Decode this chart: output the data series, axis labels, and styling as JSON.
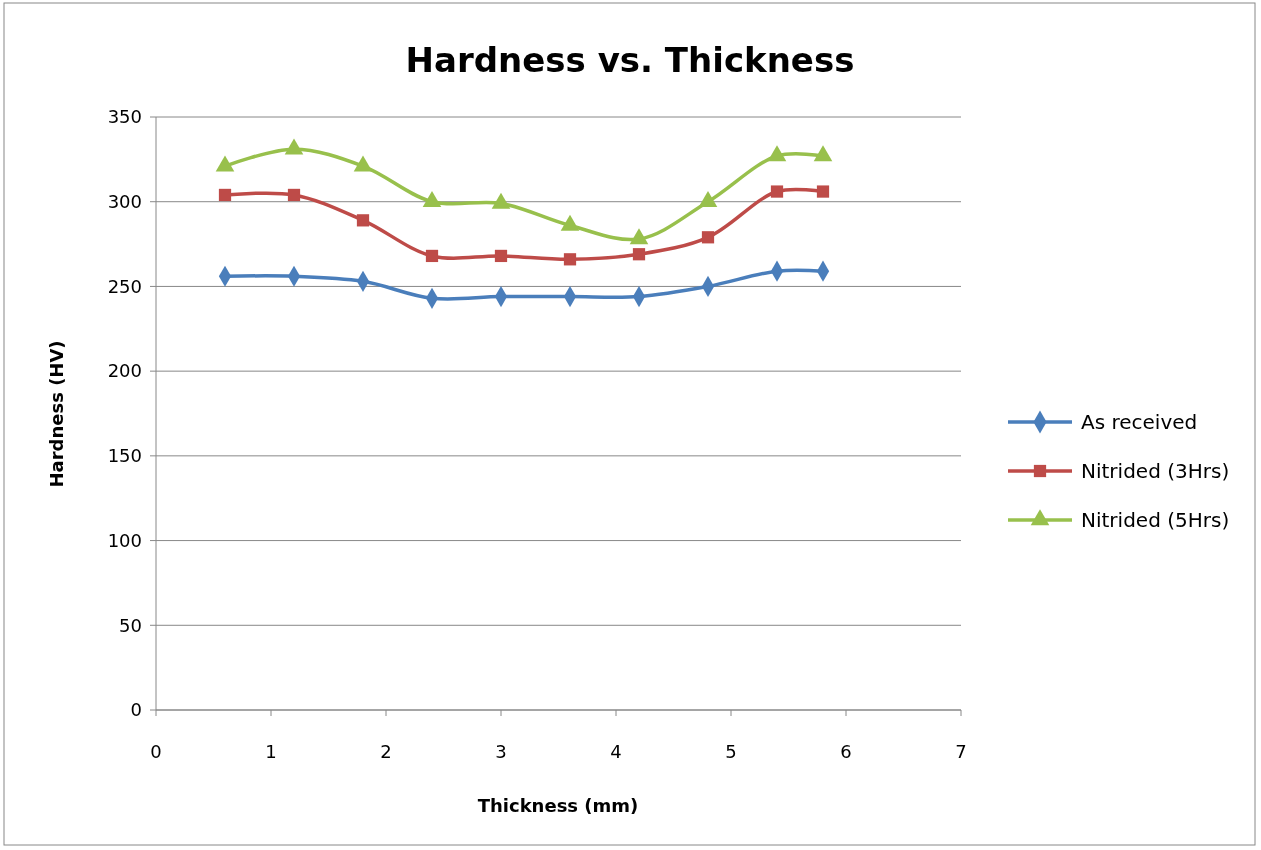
{
  "chart_data": {
    "type": "line",
    "title": "Hardness vs. Thickness",
    "xlabel": "Thickness (mm)",
    "ylabel": "Hardness (HV)",
    "x": [
      0.6,
      1.2,
      1.8,
      2.4,
      3.0,
      3.6,
      4.2,
      4.8,
      5.4,
      5.8
    ],
    "series": [
      {
        "name": "As received",
        "color": "#4a7ebb",
        "marker": "diamond",
        "values": [
          256,
          256,
          253,
          243,
          244,
          244,
          244,
          250,
          259,
          259
        ]
      },
      {
        "name": "Nitrided (3Hrs)",
        "color": "#be4b48",
        "marker": "square",
        "values": [
          304,
          304,
          289,
          268,
          268,
          266,
          269,
          279,
          306,
          306
        ]
      },
      {
        "name": "Nitrided (5Hrs)",
        "color": "#98c04c",
        "marker": "triangle",
        "values": [
          321,
          331,
          321,
          300,
          299,
          286,
          278,
          300,
          327,
          327
        ]
      }
    ],
    "xlim": [
      0,
      7
    ],
    "xticks": [
      0,
      1,
      2,
      3,
      4,
      5,
      6,
      7
    ],
    "ylim": [
      0,
      350
    ],
    "yticks": [
      0,
      50,
      100,
      150,
      200,
      250,
      300,
      350
    ],
    "grid": "y",
    "legend": "right",
    "line_style": "solid"
  }
}
